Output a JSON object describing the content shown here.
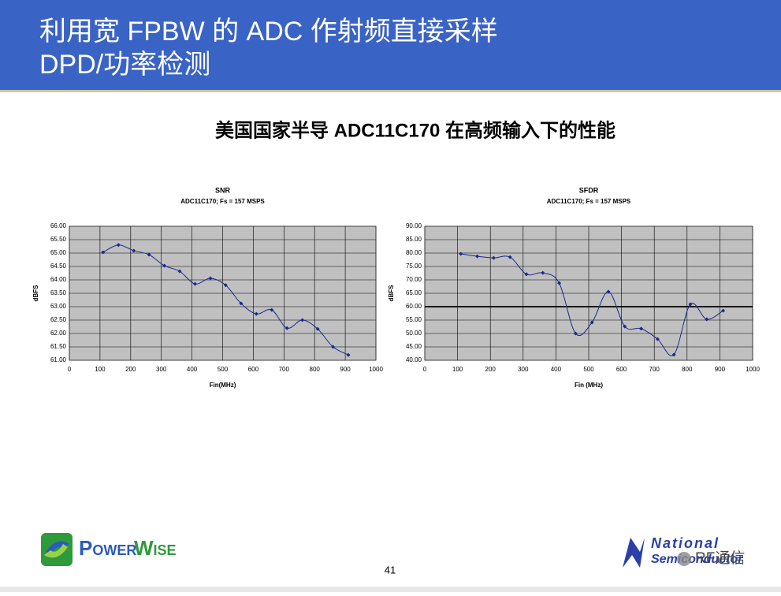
{
  "slide": {
    "title_line1": "利用宽 FPBW 的 ADC 作射频直接采样",
    "title_line2": "DPD/功率检测",
    "subtitle": "美国国家半导 ADC11C170 在高频输入下的性能",
    "page_number": "41",
    "logo_left_a": "Power",
    "logo_left_b": "Wise",
    "logo_right_a": "National",
    "logo_right_b": "Semiconductor",
    "watermark": "RF通信"
  },
  "chart_data": [
    {
      "type": "line",
      "title": "SNR",
      "subtitle": "ADC11C170; Fs = 157 MSPS",
      "x_label": "Fin(MHz)",
      "y_label": "dBFS",
      "color": "#1a2a8c",
      "x": [
        110,
        160,
        210,
        260,
        310,
        360,
        410,
        460,
        510,
        560,
        610,
        660,
        710,
        760,
        810,
        860,
        910
      ],
      "values": [
        65.03,
        65.3,
        65.09,
        64.94,
        64.53,
        64.32,
        63.85,
        64.06,
        63.8,
        63.12,
        62.73,
        62.88,
        62.2,
        62.5,
        62.17,
        61.5,
        61.2
      ],
      "xlim": [
        0,
        1000
      ],
      "xticks": [
        0,
        100,
        200,
        300,
        400,
        500,
        600,
        700,
        800,
        900,
        1000
      ],
      "ylim": [
        61,
        66
      ],
      "yticks": [
        {
          "value": 61,
          "label": "61.00"
        },
        {
          "value": 61.5,
          "label": "61.50"
        },
        {
          "value": 62,
          "label": "62.00"
        },
        {
          "value": 62.5,
          "label": "62.50"
        },
        {
          "value": 63,
          "label": "63.00"
        },
        {
          "value": 63.5,
          "label": "63.50"
        },
        {
          "value": 64,
          "label": "64.00"
        },
        {
          "value": 64.5,
          "label": "64.50"
        },
        {
          "value": 65,
          "label": "65.00"
        },
        {
          "value": 65.5,
          "label": "65.50"
        },
        {
          "value": 66,
          "label": "66.00"
        }
      ],
      "grid": true
    },
    {
      "type": "line",
      "title": "SFDR",
      "subtitle": "ADC11C170; Fs = 157 MSPS",
      "x_label": "Fin (MHz)",
      "y_label": "dBFS",
      "color": "#1a2a8c",
      "x": [
        110,
        160,
        210,
        260,
        310,
        360,
        410,
        460,
        510,
        560,
        610,
        660,
        710,
        760,
        810,
        860,
        910
      ],
      "values": [
        79.7,
        78.8,
        78.2,
        78.5,
        72.1,
        72.6,
        68.8,
        50.0,
        54.1,
        65.6,
        52.6,
        51.8,
        47.9,
        42.1,
        60.9,
        55.3,
        58.5
      ],
      "xlim": [
        0,
        1000
      ],
      "xticks": [
        0,
        100,
        200,
        300,
        400,
        500,
        600,
        700,
        800,
        900,
        1000
      ],
      "ylim": [
        40,
        90
      ],
      "yticks": [
        {
          "value": 40,
          "label": "40.00"
        },
        {
          "value": 45,
          "label": "45.00"
        },
        {
          "value": 50,
          "label": "50.00"
        },
        {
          "value": 55,
          "label": "55.00"
        },
        {
          "value": 60,
          "label": "60.00"
        },
        {
          "value": 65,
          "label": "65.00"
        },
        {
          "value": 70,
          "label": "70.00"
        },
        {
          "value": 75,
          "label": "75.00"
        },
        {
          "value": 80,
          "label": "80.00"
        },
        {
          "value": 85,
          "label": "85.00"
        },
        {
          "value": 90,
          "label": "90.00"
        }
      ],
      "grid": true,
      "reference_line": 60
    }
  ]
}
